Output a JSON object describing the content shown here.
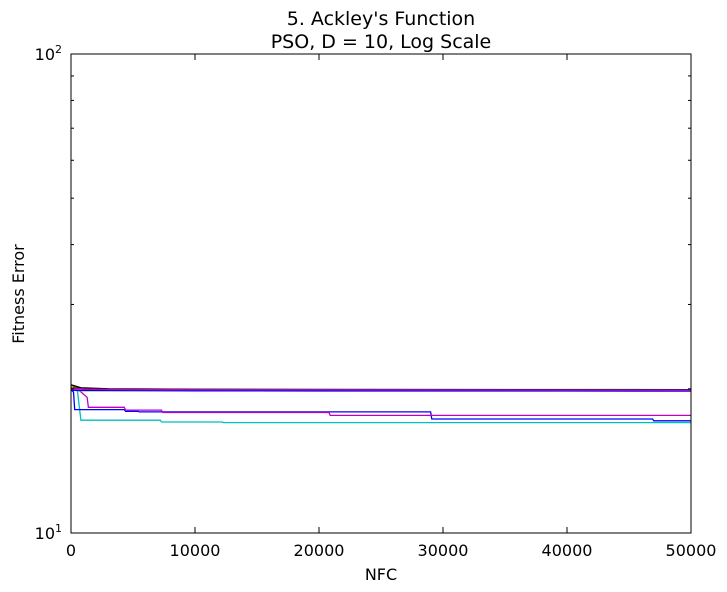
{
  "chart_data": {
    "type": "line",
    "title": [
      "5.   Ackley's Function",
      "PSO, D = 10, Log Scale"
    ],
    "xlabel": "NFC",
    "ylabel": "Fitness Error",
    "xlim": [
      0,
      50000
    ],
    "ylim": [
      10,
      100
    ],
    "yscale": "log",
    "grid": false,
    "legend": "none",
    "x_ticks": [
      {
        "value": 0,
        "label": "0"
      },
      {
        "value": 10000,
        "label": "10000"
      },
      {
        "value": 20000,
        "label": "20000"
      },
      {
        "value": 30000,
        "label": "30000"
      },
      {
        "value": 40000,
        "label": "40000"
      },
      {
        "value": 50000,
        "label": "50000"
      }
    ],
    "y_ticks": [
      {
        "value": 10,
        "base": "10",
        "exp": "1"
      },
      {
        "value": 100,
        "base": "10",
        "exp": "2"
      }
    ],
    "series": [
      {
        "color": "#00bfbf",
        "x": [
          0,
          500,
          800,
          7200,
          7300,
          12200,
          12300,
          50000
        ],
        "y": [
          20.1,
          20.0,
          17.2,
          17.2,
          17.05,
          17.05,
          17.0,
          17.0
        ]
      },
      {
        "color": "#0000ff",
        "x": [
          0,
          200,
          300,
          4300,
          4400,
          5400,
          5500,
          29000,
          29100,
          46900,
          47000,
          50000
        ],
        "y": [
          19.9,
          19.7,
          18.1,
          18.1,
          17.95,
          17.95,
          17.9,
          17.9,
          17.3,
          17.3,
          17.15,
          17.15
        ]
      },
      {
        "color": "#bf00bf",
        "x": [
          0,
          700,
          1300,
          1400,
          4300,
          4400,
          7300,
          7400,
          20800,
          20900,
          50000
        ],
        "y": [
          19.9,
          19.8,
          19.2,
          18.3,
          18.3,
          18.05,
          18.05,
          17.85,
          17.85,
          17.6,
          17.6
        ]
      },
      {
        "color": "#008000",
        "x": [
          0,
          1000,
          5000,
          20000,
          50000
        ],
        "y": [
          20.2,
          20.0,
          19.95,
          19.93,
          19.92
        ]
      },
      {
        "color": "#ff0000",
        "x": [
          0,
          1000,
          3000,
          20000,
          50000
        ],
        "y": [
          20.15,
          19.95,
          19.9,
          19.88,
          19.87
        ]
      },
      {
        "color": "#bfbf00",
        "x": [
          0,
          300,
          1000,
          5000,
          20000,
          50000
        ],
        "y": [
          20.3,
          19.85,
          19.8,
          19.82,
          19.84,
          19.85
        ]
      },
      {
        "color": "#000000",
        "x": [
          0,
          800,
          3000,
          10000,
          50000
        ],
        "y": [
          20.4,
          20.1,
          20.0,
          19.95,
          19.9
        ]
      },
      {
        "color": "#3f3f7f",
        "x": [
          0,
          1500,
          6000,
          25000,
          50000
        ],
        "y": [
          20.05,
          19.97,
          19.93,
          19.9,
          19.88
        ]
      },
      {
        "color": "#0000ff",
        "x": [
          0,
          5000,
          10000,
          15000,
          20000,
          30000,
          40000,
          50000
        ],
        "y": [
          19.85,
          19.83,
          19.81,
          19.8,
          19.79,
          19.79,
          19.79,
          19.78
        ]
      },
      {
        "color": "#bf00bf",
        "x": [
          0,
          3000,
          8000,
          36000,
          50000
        ],
        "y": [
          20.0,
          19.93,
          19.9,
          19.88,
          19.86
        ]
      }
    ]
  }
}
